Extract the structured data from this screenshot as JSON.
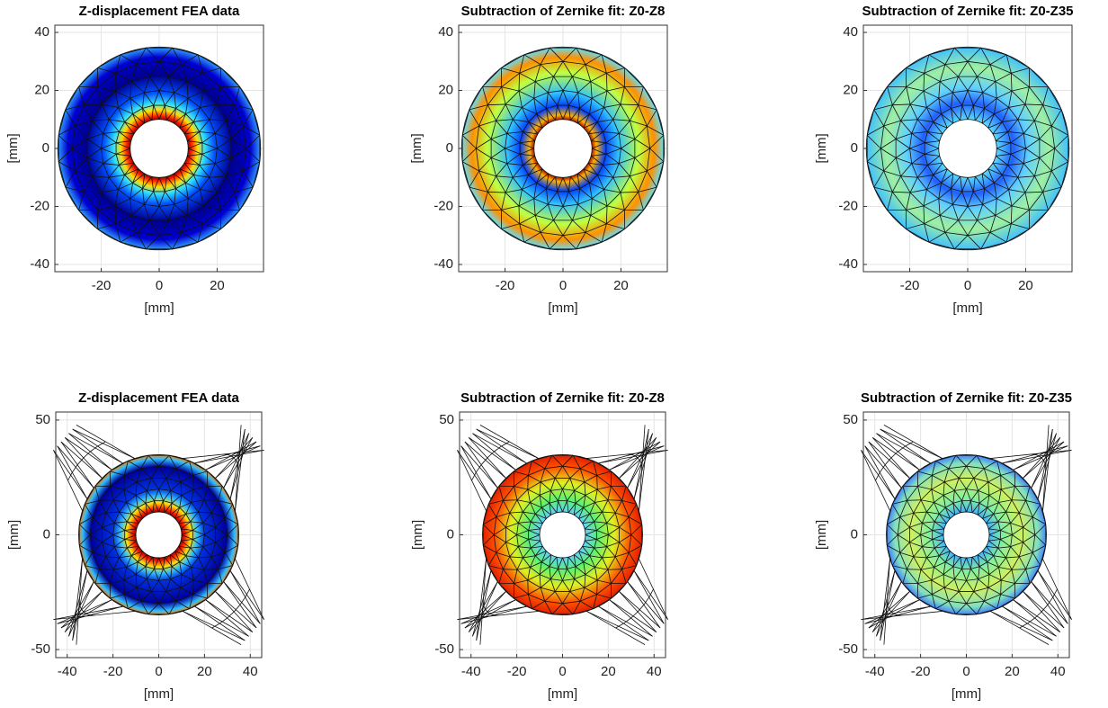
{
  "chart_data": [
    {
      "type": "image",
      "title": "Z-displacement FEA data",
      "xlabel": "[mm]",
      "ylabel": "[mm]",
      "xlim": [
        -36,
        36
      ],
      "ylim": [
        -42.5,
        42.5
      ],
      "xticks": [
        -20,
        0,
        20
      ],
      "yticks": [
        -40,
        -20,
        0,
        20,
        40
      ],
      "grid": true
    },
    {
      "type": "image",
      "title": "Subtraction of Zernike fit: Z0-Z8",
      "xlabel": "[mm]",
      "ylabel": "[mm]",
      "xlim": [
        -36,
        36
      ],
      "ylim": [
        -42.5,
        42.5
      ],
      "xticks": [
        -20,
        0,
        20
      ],
      "yticks": [
        -40,
        -20,
        0,
        20,
        40
      ],
      "grid": true
    },
    {
      "type": "image",
      "title": "Subtraction of Zernike fit: Z0-Z35",
      "xlabel": "[mm]",
      "ylabel": "[mm]",
      "xlim": [
        -36,
        36
      ],
      "ylim": [
        -42.5,
        42.5
      ],
      "xticks": [
        -20,
        0,
        20
      ],
      "yticks": [
        -40,
        -20,
        0,
        20,
        40
      ],
      "grid": true
    },
    {
      "type": "image",
      "title": "Z-displacement FEA data",
      "xlabel": "[mm]",
      "ylabel": "[mm]",
      "xlim": [
        -45,
        45
      ],
      "ylim": [
        -53.5,
        53.5
      ],
      "xticks": [
        -40,
        -20,
        0,
        20,
        40
      ],
      "yticks": [
        -50,
        0,
        50
      ],
      "grid": true
    },
    {
      "type": "image",
      "title": "Subtraction of Zernike fit: Z0-Z8",
      "xlabel": "[mm]",
      "ylabel": "[mm]",
      "xlim": [
        -45,
        45
      ],
      "ylim": [
        -53.5,
        53.5
      ],
      "xticks": [
        -40,
        -20,
        0,
        20,
        40
      ],
      "yticks": [
        -50,
        0,
        50
      ],
      "grid": true
    },
    {
      "type": "image",
      "title": "Subtraction of Zernike fit: Z0-Z35",
      "xlabel": "[mm]",
      "ylabel": "[mm]",
      "xlim": [
        -45,
        45
      ],
      "ylim": [
        -53.5,
        53.5
      ],
      "xticks": [
        -40,
        -20,
        0,
        20,
        40
      ],
      "yticks": [
        -50,
        0,
        50
      ],
      "grid": true
    }
  ]
}
